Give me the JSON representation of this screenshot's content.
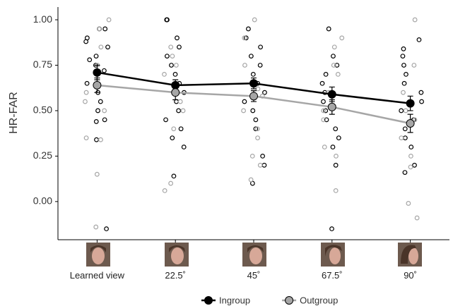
{
  "chart_data": {
    "type": "line",
    "y_label": "HR-FAR",
    "categories": [
      "Learned view",
      "22.5˚",
      "45˚",
      "67.5˚",
      "90˚"
    ],
    "ylim": [
      -0.21,
      1.07
    ],
    "yticks": [
      {
        "value": 0,
        "label": "0.00"
      },
      {
        "value": 0.25,
        "label": "0.25"
      },
      {
        "value": 0.5,
        "label": "0.50"
      },
      {
        "value": 0.75,
        "label": "0.75"
      },
      {
        "value": 1,
        "label": "1.00"
      }
    ],
    "grid": false,
    "legend": "bottom",
    "series": [
      {
        "name": "Ingroup",
        "color": "#000000",
        "values": [
          0.71,
          0.64,
          0.65,
          0.59,
          0.54
        ],
        "errors": [
          0.04,
          0.03,
          0.03,
          0.04,
          0.04
        ],
        "points": [
          [
            0.95,
            0.95,
            0.9,
            0.88,
            0.85,
            0.8,
            0.78,
            0.75,
            0.72,
            0.7,
            0.65,
            0.6,
            0.55,
            0.5,
            0.45,
            0.44,
            0.34,
            -0.15
          ],
          [
            1,
            1,
            0.9,
            0.85,
            0.8,
            0.75,
            0.7,
            0.65,
            0.6,
            0.55,
            0.5,
            0.45,
            0.4,
            0.35,
            0.3,
            0.14
          ],
          [
            0.95,
            0.9,
            0.85,
            0.8,
            0.75,
            0.7,
            0.65,
            0.6,
            0.55,
            0.5,
            0.45,
            0.4,
            0.25,
            0.2,
            0.1
          ],
          [
            0.95,
            0.8,
            0.75,
            0.7,
            0.65,
            0.6,
            0.55,
            0.5,
            0.45,
            0.4,
            0.35,
            0.3,
            0.2,
            -0.15
          ],
          [
            0.89,
            0.84,
            0.8,
            0.75,
            0.7,
            0.65,
            0.6,
            0.55,
            0.5,
            0.45,
            0.4,
            0.35,
            0.3,
            0.2,
            0.16
          ]
        ]
      },
      {
        "name": "Outgroup",
        "color": "#a6a6a6",
        "values": [
          0.64,
          0.6,
          0.58,
          0.52,
          0.43
        ],
        "errors": [
          0.04,
          0.04,
          0.03,
          0.04,
          0.05
        ],
        "points": [
          [
            1,
            0.95,
            0.85,
            0.75,
            0.7,
            0.64,
            0.6,
            0.55,
            0.5,
            0.35,
            0.34,
            0.15,
            -0.14
          ],
          [
            0.85,
            0.8,
            0.75,
            0.7,
            0.6,
            0.55,
            0.5,
            0.4,
            0.1,
            0.06
          ],
          [
            1,
            0.9,
            0.75,
            0.62,
            0.58,
            0.5,
            0.4,
            0.35,
            0.25,
            0.2,
            0.12
          ],
          [
            0.9,
            0.85,
            0.75,
            0.7,
            0.6,
            0.5,
            0.45,
            0.3,
            0.25,
            0.06
          ],
          [
            1,
            0.75,
            0.6,
            0.5,
            0.45,
            0.35,
            0.25,
            0.19,
            -0.01,
            -0.09
          ]
        ]
      }
    ]
  }
}
